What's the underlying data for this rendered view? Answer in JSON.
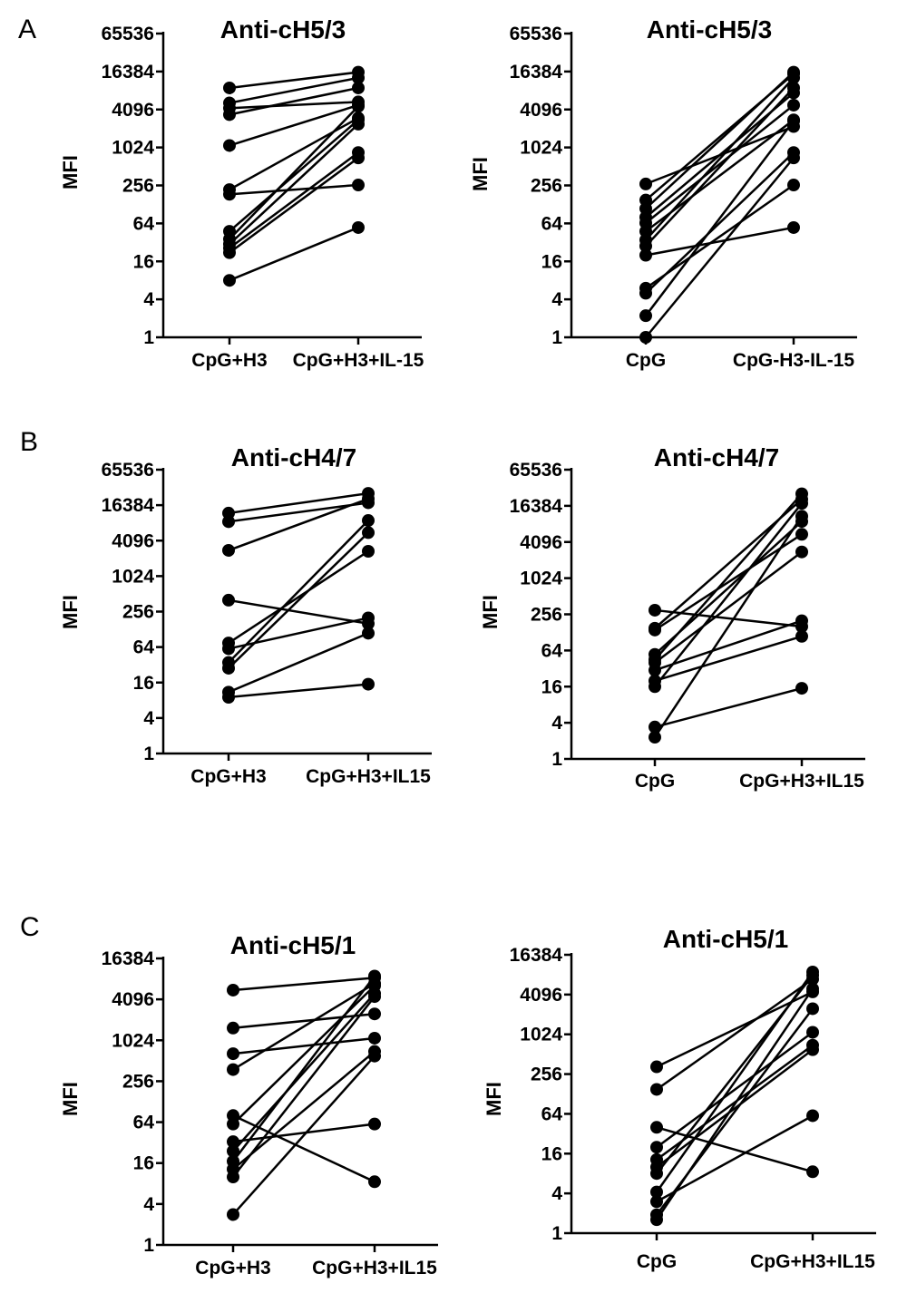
{
  "panel_letters": [
    "A",
    "B",
    "C"
  ],
  "chart_data": [
    {
      "type": "line",
      "panel": "A",
      "title": "Anti-cH5/3",
      "ylabel": "MFI",
      "yscale": "log2",
      "ylim": [
        1,
        65536
      ],
      "yticks": [
        "1",
        "4",
        "16",
        "64",
        "256",
        "1024",
        "4096",
        "16384",
        "65536"
      ],
      "categories": [
        "CpG+H3",
        "CpG+H3+IL-15"
      ],
      "pairs": [
        [
          8,
          55
        ],
        [
          22,
          700
        ],
        [
          26,
          850
        ],
        [
          30,
          2400
        ],
        [
          36,
          4600
        ],
        [
          48,
          2800
        ],
        [
          185,
          260
        ],
        [
          220,
          3000
        ],
        [
          1100,
          4800
        ],
        [
          3400,
          9000
        ],
        [
          4300,
          5400
        ],
        [
          5200,
          13000
        ],
        [
          9000,
          16000
        ]
      ]
    },
    {
      "type": "line",
      "panel": "A",
      "title": "Anti-cH5/3",
      "ylabel": "MFI",
      "yscale": "log2",
      "ylim": [
        1,
        65536
      ],
      "yticks": [
        "1",
        "4",
        "16",
        "64",
        "256",
        "1024",
        "4096",
        "16384",
        "65536"
      ],
      "categories": [
        "CpG",
        "CpG-H3-IL-15"
      ],
      "pairs": [
        [
          1,
          700
        ],
        [
          2.2,
          2700
        ],
        [
          5,
          850
        ],
        [
          6,
          260
        ],
        [
          20,
          55
        ],
        [
          28,
          9000
        ],
        [
          35,
          13000
        ],
        [
          48,
          2800
        ],
        [
          65,
          4800
        ],
        [
          80,
          7500
        ],
        [
          110,
          16000
        ],
        [
          150,
          15000
        ],
        [
          270,
          2200
        ]
      ]
    },
    {
      "type": "line",
      "panel": "B",
      "title": "Anti-cH4/7",
      "ylabel": "MFI",
      "yscale": "log2",
      "ylim": [
        1,
        65536
      ],
      "yticks": [
        "1",
        "4",
        "16",
        "64",
        "256",
        "1024",
        "4096",
        "16384",
        "65536"
      ],
      "categories": [
        "CpG+H3",
        "CpG+H3+IL15"
      ],
      "pairs": [
        [
          9,
          15
        ],
        [
          11,
          110
        ],
        [
          28,
          5600
        ],
        [
          35,
          9000
        ],
        [
          60,
          200
        ],
        [
          75,
          2700
        ],
        [
          400,
          160
        ],
        [
          2800,
          21000
        ],
        [
          8600,
          18000
        ],
        [
          12000,
          26000
        ]
      ]
    },
    {
      "type": "line",
      "panel": "B",
      "title": "Anti-cH4/7",
      "ylabel": "MFI",
      "yscale": "log2",
      "ylim": [
        1,
        65536
      ],
      "yticks": [
        "1",
        "4",
        "16",
        "64",
        "256",
        "1024",
        "4096",
        "16384",
        "65536"
      ],
      "categories": [
        "CpG",
        "CpG+H3+IL15"
      ],
      "pairs": [
        [
          2.3,
          11000
        ],
        [
          3.4,
          15
        ],
        [
          16,
          18000
        ],
        [
          20,
          110
        ],
        [
          30,
          200
        ],
        [
          40,
          2800
        ],
        [
          55,
          9000
        ],
        [
          45,
          26000
        ],
        [
          140,
          5500
        ],
        [
          150,
          21000
        ],
        [
          300,
          160
        ]
      ]
    },
    {
      "type": "line",
      "panel": "C",
      "title": "Anti-cH5/1",
      "ylabel": "MFI",
      "yscale": "log2",
      "ylim": [
        1,
        16384
      ],
      "yticks": [
        "1",
        "4",
        "16",
        "64",
        "256",
        "1024",
        "4096",
        "16384"
      ],
      "categories": [
        "CpG+H3",
        "CpG+H3+IL15"
      ],
      "pairs": [
        [
          2.8,
          600
        ],
        [
          10,
          4500
        ],
        [
          13,
          700
        ],
        [
          17,
          9000
        ],
        [
          24,
          5000
        ],
        [
          33,
          60
        ],
        [
          60,
          6500
        ],
        [
          80,
          8.5
        ],
        [
          380,
          7000
        ],
        [
          650,
          1100
        ],
        [
          1550,
          2500
        ],
        [
          5600,
          8500
        ]
      ]
    },
    {
      "type": "line",
      "panel": "C",
      "title": "Anti-cH5/1",
      "ylabel": "MFI",
      "yscale": "log2",
      "ylim": [
        1,
        16384
      ],
      "yticks": [
        "1",
        "4",
        "16",
        "64",
        "256",
        "1024",
        "4096",
        "16384"
      ],
      "categories": [
        "CpG",
        "CpG+H3+IL15"
      ],
      "pairs": [
        [
          1.6,
          5000
        ],
        [
          1.9,
          2500
        ],
        [
          3,
          60
        ],
        [
          4.2,
          9000
        ],
        [
          8,
          8000
        ],
        [
          10,
          600
        ],
        [
          13,
          700
        ],
        [
          20,
          1100
        ],
        [
          40,
          8.5
        ],
        [
          150,
          7000
        ],
        [
          330,
          4500
        ]
      ]
    }
  ]
}
